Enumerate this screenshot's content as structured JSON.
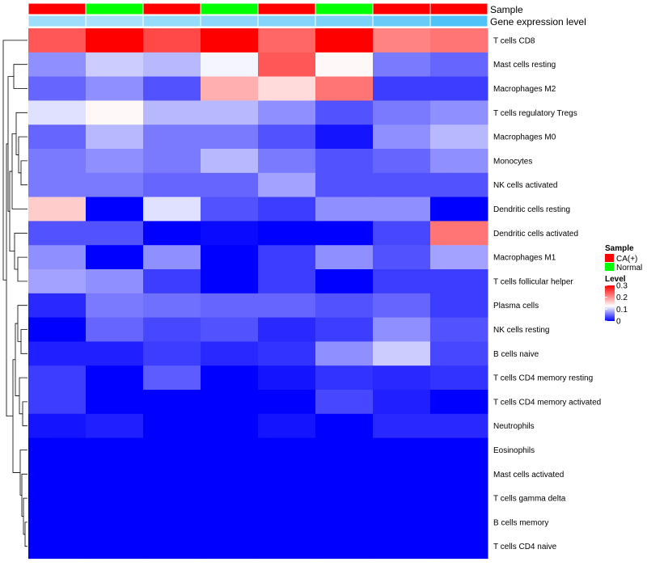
{
  "chart_data": {
    "type": "heatmap",
    "title": "",
    "annotation_labels": [
      "Sample",
      "Gene expression level"
    ],
    "columns": [
      {
        "sample": "CA(+)",
        "gene_expression": 0.55
      },
      {
        "sample": "Normal",
        "gene_expression": 0.5
      },
      {
        "sample": "CA(+)",
        "gene_expression": 0.6
      },
      {
        "sample": "Normal",
        "gene_expression": 0.65
      },
      {
        "sample": "CA(+)",
        "gene_expression": 0.7
      },
      {
        "sample": "Normal",
        "gene_expression": 0.75
      },
      {
        "sample": "CA(+)",
        "gene_expression": 0.85
      },
      {
        "sample": "CA(+)",
        "gene_expression": 1.0
      }
    ],
    "rows": [
      "T cells CD8",
      "Mast cells resting",
      "Macrophages M2",
      "T cells regulatory  Tregs",
      "Macrophages M0",
      "Monocytes",
      "NK cells activated",
      "Dendritic cells resting",
      "Dendritic cells activated",
      "Macrophages M1",
      "T cells follicular helper",
      "Plasma cells",
      "NK cells resting",
      "B cells naive",
      "T cells CD4 memory resting",
      "T cells CD4 memory activated",
      "Neutrophils",
      "Eosinophils",
      "Mast cells activated",
      "T cells gamma delta",
      "B cells memory",
      "T cells CD4 naive"
    ],
    "values": [
      [
        0.24,
        0.3,
        0.25,
        0.3,
        0.23,
        0.3,
        0.21,
        0.22
      ],
      [
        0.07,
        0.1,
        0.09,
        0.12,
        0.24,
        0.13,
        0.06,
        0.05
      ],
      [
        0.05,
        0.07,
        0.04,
        0.18,
        0.15,
        0.22,
        0.03,
        0.03
      ],
      [
        0.11,
        0.13,
        0.09,
        0.09,
        0.07,
        0.04,
        0.06,
        0.07
      ],
      [
        0.05,
        0.09,
        0.06,
        0.06,
        0.04,
        0.01,
        0.07,
        0.09
      ],
      [
        0.06,
        0.07,
        0.06,
        0.09,
        0.06,
        0.04,
        0.05,
        0.07
      ],
      [
        0.06,
        0.06,
        0.05,
        0.05,
        0.08,
        0.04,
        0.04,
        0.04
      ],
      [
        0.16,
        0.0,
        0.11,
        0.04,
        0.03,
        0.07,
        0.07,
        0.0
      ],
      [
        0.04,
        0.04,
        0.0,
        0.005,
        0.0,
        0.0,
        0.035,
        0.22
      ],
      [
        0.07,
        0.0,
        0.07,
        0.0,
        0.03,
        0.07,
        0.04,
        0.08
      ],
      [
        0.08,
        0.07,
        0.03,
        0.0,
        0.03,
        0.0,
        0.03,
        0.03
      ],
      [
        0.02,
        0.06,
        0.055,
        0.05,
        0.05,
        0.04,
        0.05,
        0.03
      ],
      [
        0.0,
        0.05,
        0.035,
        0.04,
        0.02,
        0.03,
        0.07,
        0.04
      ],
      [
        0.015,
        0.015,
        0.03,
        0.02,
        0.025,
        0.07,
        0.1,
        0.035
      ],
      [
        0.03,
        0.0,
        0.045,
        0.0,
        0.01,
        0.025,
        0.02,
        0.025
      ],
      [
        0.03,
        0.0,
        0.0,
        0.0,
        0.0,
        0.035,
        0.015,
        0.0
      ],
      [
        0.01,
        0.015,
        0.0,
        0.0,
        0.01,
        0.0,
        0.02,
        0.02
      ],
      [
        0.0,
        0.0,
        0.0,
        0.0,
        0.0,
        0.0,
        0.0,
        0.0
      ],
      [
        0.0,
        0.0,
        0.0,
        0.0,
        0.0,
        0.0,
        0.0,
        0.0
      ],
      [
        0.0,
        0.0,
        0.0,
        0.0,
        0.0,
        0.0,
        0.0,
        0.0
      ],
      [
        0.0,
        0.0,
        0.0,
        0.0,
        0.0,
        0.0,
        0.0,
        0.0
      ],
      [
        0.0,
        0.0,
        0.0,
        0.0,
        0.0,
        0.0,
        0.0,
        0.0
      ]
    ],
    "color_scale": {
      "low": "#0000FF",
      "mid": "#FFFFFF",
      "high": "#FF0000",
      "min": 0,
      "mid_value": 0.125,
      "max": 0.3
    },
    "legend_sample": {
      "title": "Sample",
      "entries": [
        {
          "label": "CA(+)",
          "color": "#FF0000"
        },
        {
          "label": "Normal",
          "color": "#00FF00"
        }
      ]
    },
    "legend_level": {
      "title": "Level",
      "ticks": [
        {
          "label": "0.3",
          "value": 0.3
        },
        {
          "label": "0.2",
          "value": 0.2
        },
        {
          "label": "0.1",
          "value": 0.1
        },
        {
          "label": "0",
          "value": 0
        }
      ]
    },
    "gene_expression_colors": {
      "low": "#FFFFFF",
      "high": "#4FC3F7"
    }
  }
}
